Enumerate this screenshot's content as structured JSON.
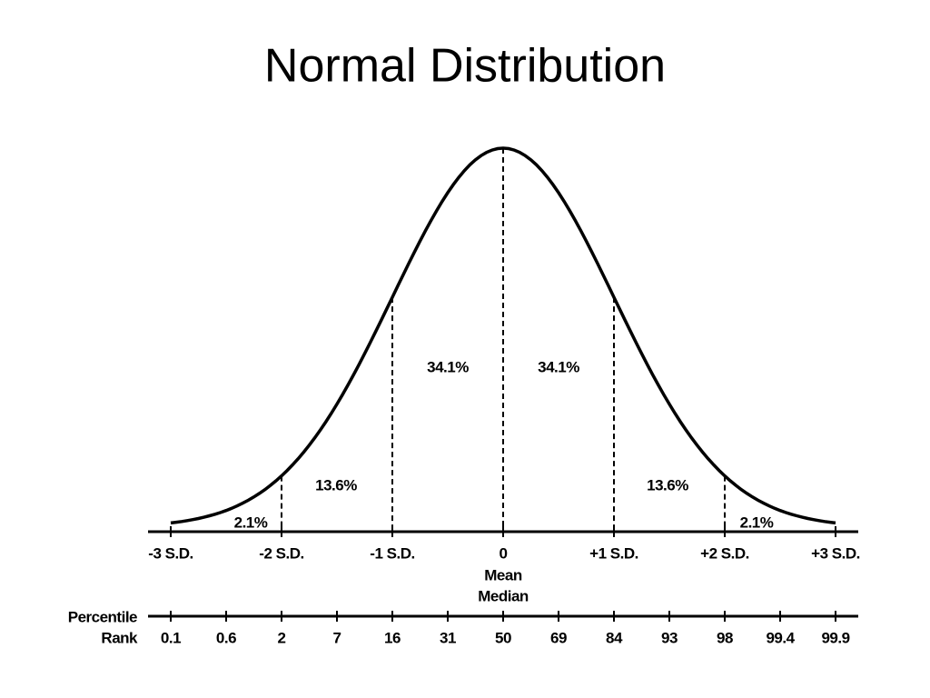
{
  "title": "Normal Distribution",
  "sd_labels": [
    "-3 S.D.",
    "-2 S.D.",
    "-1 S.D.",
    "0",
    "+1 S.D.",
    "+2 S.D.",
    "+3 S.D."
  ],
  "center_labels": [
    "Mean",
    "Median"
  ],
  "region_labels": [
    "2.1%",
    "13.6%",
    "34.1%",
    "34.1%",
    "13.6%",
    "2.1%"
  ],
  "percentile_labels": [
    "Percentile",
    "Rank"
  ],
  "percentile_ranks": [
    "0.1",
    "0.6",
    "2",
    "7",
    "16",
    "31",
    "50",
    "69",
    "84",
    "93",
    "98",
    "99.4",
    "99.9"
  ]
}
